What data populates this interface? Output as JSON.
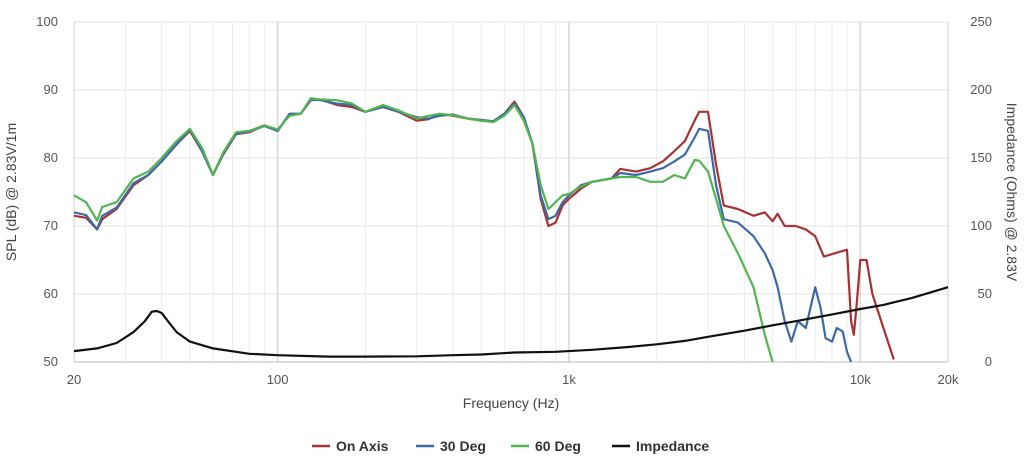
{
  "chart_data": {
    "type": "line",
    "xlabel": "Frequency (Hz)",
    "ylabel": "SPL (dB) @ 2.83V/1m",
    "y2label": "Impedance (Ohms) @ 2.83V",
    "x_scale": "log",
    "xlim": [
      20,
      20000
    ],
    "ylim": [
      50,
      100
    ],
    "y2lim": [
      0,
      250
    ],
    "grid": true,
    "legend_position": "bottom-center",
    "x_ticks": [
      {
        "value": 20,
        "label": "20"
      },
      {
        "value": 100,
        "label": "100"
      },
      {
        "value": 1000,
        "label": "1k"
      },
      {
        "value": 10000,
        "label": "10k"
      },
      {
        "value": 20000,
        "label": "20k"
      }
    ],
    "y_ticks": [
      {
        "value": 50,
        "label": "50"
      },
      {
        "value": 60,
        "label": "60"
      },
      {
        "value": 70,
        "label": "70"
      },
      {
        "value": 80,
        "label": "80"
      },
      {
        "value": 90,
        "label": "90"
      },
      {
        "value": 100,
        "label": "100"
      }
    ],
    "y2_ticks": [
      {
        "value": 0,
        "label": "0"
      },
      {
        "value": 50,
        "label": "50"
      },
      {
        "value": 100,
        "label": "100"
      },
      {
        "value": 150,
        "label": "150"
      },
      {
        "value": 200,
        "label": "200"
      },
      {
        "value": 250,
        "label": "250"
      }
    ],
    "series": [
      {
        "name": "On Axis",
        "color": "#a83232",
        "axis": "left",
        "points": [
          [
            20,
            71.5
          ],
          [
            22,
            71.2
          ],
          [
            24,
            69.5
          ],
          [
            25,
            71
          ],
          [
            28,
            72.5
          ],
          [
            32,
            76
          ],
          [
            36,
            77.5
          ],
          [
            40,
            79.5
          ],
          [
            45,
            82
          ],
          [
            50,
            84
          ],
          [
            55,
            81
          ],
          [
            60,
            77.5
          ],
          [
            65,
            80.5
          ],
          [
            72,
            83.5
          ],
          [
            80,
            83.8
          ],
          [
            90,
            84.8
          ],
          [
            100,
            84
          ],
          [
            110,
            86.5
          ],
          [
            120,
            86.5
          ],
          [
            130,
            88.5
          ],
          [
            140,
            88.6
          ],
          [
            160,
            87.8
          ],
          [
            180,
            87.5
          ],
          [
            200,
            86.8
          ],
          [
            230,
            87.5
          ],
          [
            260,
            86.8
          ],
          [
            300,
            85.5
          ],
          [
            330,
            85.7
          ],
          [
            360,
            86.5
          ],
          [
            400,
            86.2
          ],
          [
            450,
            85.8
          ],
          [
            500,
            85.5
          ],
          [
            550,
            85.4
          ],
          [
            600,
            86.5
          ],
          [
            650,
            88.3
          ],
          [
            700,
            86
          ],
          [
            750,
            82
          ],
          [
            800,
            74
          ],
          [
            850,
            70
          ],
          [
            900,
            70.5
          ],
          [
            950,
            73
          ],
          [
            1000,
            74
          ],
          [
            1100,
            75.5
          ],
          [
            1200,
            76.5
          ],
          [
            1400,
            77
          ],
          [
            1500,
            78.4
          ],
          [
            1700,
            78
          ],
          [
            1900,
            78.5
          ],
          [
            2100,
            79.5
          ],
          [
            2300,
            81
          ],
          [
            2500,
            82.5
          ],
          [
            2700,
            85.5
          ],
          [
            2800,
            86.8
          ],
          [
            3000,
            86.8
          ],
          [
            3200,
            79
          ],
          [
            3400,
            73
          ],
          [
            3800,
            72.5
          ],
          [
            4300,
            71.5
          ],
          [
            4700,
            72
          ],
          [
            5000,
            70.7
          ],
          [
            5200,
            71.8
          ],
          [
            5500,
            70
          ],
          [
            6000,
            70
          ],
          [
            6500,
            69.5
          ],
          [
            7000,
            68.5
          ],
          [
            7500,
            65.5
          ],
          [
            8500,
            66.2
          ],
          [
            9000,
            66.5
          ],
          [
            9300,
            56
          ],
          [
            9500,
            54
          ],
          [
            9700,
            58
          ],
          [
            10000,
            65
          ],
          [
            10500,
            65
          ],
          [
            11000,
            60
          ],
          [
            12000,
            55
          ],
          [
            13000,
            50.5
          ]
        ]
      },
      {
        "name": "30 Deg",
        "color": "#3d6aa6",
        "axis": "left",
        "points": [
          [
            20,
            72
          ],
          [
            22,
            71.6
          ],
          [
            24,
            69.5
          ],
          [
            25,
            71.5
          ],
          [
            28,
            72.7
          ],
          [
            32,
            76.3
          ],
          [
            36,
            77.5
          ],
          [
            40,
            79.5
          ],
          [
            45,
            82
          ],
          [
            50,
            84.2
          ],
          [
            55,
            81
          ],
          [
            60,
            77.5
          ],
          [
            65,
            80.6
          ],
          [
            72,
            83.6
          ],
          [
            80,
            83.9
          ],
          [
            90,
            84.7
          ],
          [
            100,
            84
          ],
          [
            110,
            86.5
          ],
          [
            120,
            86.5
          ],
          [
            130,
            88.6
          ],
          [
            140,
            88.5
          ],
          [
            160,
            88
          ],
          [
            180,
            87.8
          ],
          [
            200,
            86.8
          ],
          [
            230,
            87.5
          ],
          [
            260,
            86.8
          ],
          [
            300,
            86
          ],
          [
            330,
            85.8
          ],
          [
            360,
            86.2
          ],
          [
            400,
            86.4
          ],
          [
            450,
            85.8
          ],
          [
            500,
            85.6
          ],
          [
            550,
            85.4
          ],
          [
            600,
            86.5
          ],
          [
            650,
            88
          ],
          [
            700,
            86
          ],
          [
            750,
            82
          ],
          [
            800,
            74.5
          ],
          [
            850,
            71
          ],
          [
            900,
            71.5
          ],
          [
            950,
            73.5
          ],
          [
            1000,
            74.5
          ],
          [
            1100,
            76
          ],
          [
            1200,
            76.5
          ],
          [
            1400,
            77
          ],
          [
            1500,
            77.8
          ],
          [
            1700,
            77.5
          ],
          [
            1900,
            78
          ],
          [
            2100,
            78.5
          ],
          [
            2300,
            79.5
          ],
          [
            2500,
            80.5
          ],
          [
            2700,
            83
          ],
          [
            2800,
            84.3
          ],
          [
            3000,
            84
          ],
          [
            3200,
            76
          ],
          [
            3400,
            71
          ],
          [
            3800,
            70.5
          ],
          [
            4300,
            68.5
          ],
          [
            4700,
            66
          ],
          [
            5000,
            63.5
          ],
          [
            5200,
            61
          ],
          [
            5500,
            56
          ],
          [
            5800,
            53
          ],
          [
            6100,
            56
          ],
          [
            6500,
            55
          ],
          [
            7000,
            61
          ],
          [
            7300,
            58
          ],
          [
            7600,
            53.5
          ],
          [
            8000,
            53
          ],
          [
            8300,
            55
          ],
          [
            8700,
            54.5
          ],
          [
            9000,
            51.5
          ],
          [
            9300,
            50
          ]
        ]
      },
      {
        "name": "60 Deg",
        "color": "#52b552",
        "axis": "left",
        "points": [
          [
            20,
            74.5
          ],
          [
            22,
            73.5
          ],
          [
            24,
            70.8
          ],
          [
            25,
            72.8
          ],
          [
            28,
            73.5
          ],
          [
            32,
            77
          ],
          [
            36,
            78
          ],
          [
            40,
            80
          ],
          [
            45,
            82.5
          ],
          [
            50,
            84.3
          ],
          [
            55,
            81.5
          ],
          [
            60,
            77.5
          ],
          [
            65,
            80.8
          ],
          [
            72,
            83.8
          ],
          [
            80,
            84
          ],
          [
            90,
            84.8
          ],
          [
            100,
            84.2
          ],
          [
            110,
            86.2
          ],
          [
            120,
            86.5
          ],
          [
            130,
            88.8
          ],
          [
            140,
            88.6
          ],
          [
            160,
            88.5
          ],
          [
            180,
            88
          ],
          [
            200,
            86.8
          ],
          [
            230,
            87.8
          ],
          [
            260,
            87
          ],
          [
            300,
            85.8
          ],
          [
            330,
            86.2
          ],
          [
            360,
            86.5
          ],
          [
            400,
            86.3
          ],
          [
            450,
            85.8
          ],
          [
            500,
            85.5
          ],
          [
            550,
            85.3
          ],
          [
            600,
            86.2
          ],
          [
            650,
            87.8
          ],
          [
            700,
            85.5
          ],
          [
            750,
            82
          ],
          [
            800,
            76
          ],
          [
            850,
            72.5
          ],
          [
            900,
            73.5
          ],
          [
            950,
            74.5
          ],
          [
            1000,
            74.7
          ],
          [
            1100,
            75.8
          ],
          [
            1200,
            76.5
          ],
          [
            1400,
            77
          ],
          [
            1500,
            77.2
          ],
          [
            1700,
            77.2
          ],
          [
            1900,
            76.5
          ],
          [
            2100,
            76.5
          ],
          [
            2300,
            77.5
          ],
          [
            2500,
            77
          ],
          [
            2700,
            79.7
          ],
          [
            2800,
            79.6
          ],
          [
            3000,
            78
          ],
          [
            3200,
            74
          ],
          [
            3400,
            70
          ],
          [
            3800,
            66
          ],
          [
            4300,
            61
          ],
          [
            4700,
            54
          ],
          [
            5000,
            50
          ]
        ]
      },
      {
        "name": "Impedance",
        "color": "#111111",
        "axis": "right",
        "points": [
          [
            20,
            8
          ],
          [
            24,
            10
          ],
          [
            28,
            14
          ],
          [
            32,
            22
          ],
          [
            35,
            30
          ],
          [
            37,
            37
          ],
          [
            38.5,
            37.5
          ],
          [
            40,
            36
          ],
          [
            42,
            30
          ],
          [
            45,
            22
          ],
          [
            50,
            15
          ],
          [
            60,
            10
          ],
          [
            80,
            6
          ],
          [
            100,
            5
          ],
          [
            150,
            4
          ],
          [
            200,
            4
          ],
          [
            300,
            4.2
          ],
          [
            400,
            5
          ],
          [
            500,
            5.5
          ],
          [
            650,
            7
          ],
          [
            900,
            7.5
          ],
          [
            1200,
            9
          ],
          [
            1600,
            11
          ],
          [
            2000,
            13
          ],
          [
            2500,
            15.5
          ],
          [
            3000,
            18.5
          ],
          [
            4000,
            23
          ],
          [
            5000,
            27
          ],
          [
            6000,
            30
          ],
          [
            8000,
            35
          ],
          [
            10000,
            39
          ],
          [
            12000,
            42
          ],
          [
            15000,
            47
          ],
          [
            20000,
            55
          ]
        ]
      }
    ]
  }
}
